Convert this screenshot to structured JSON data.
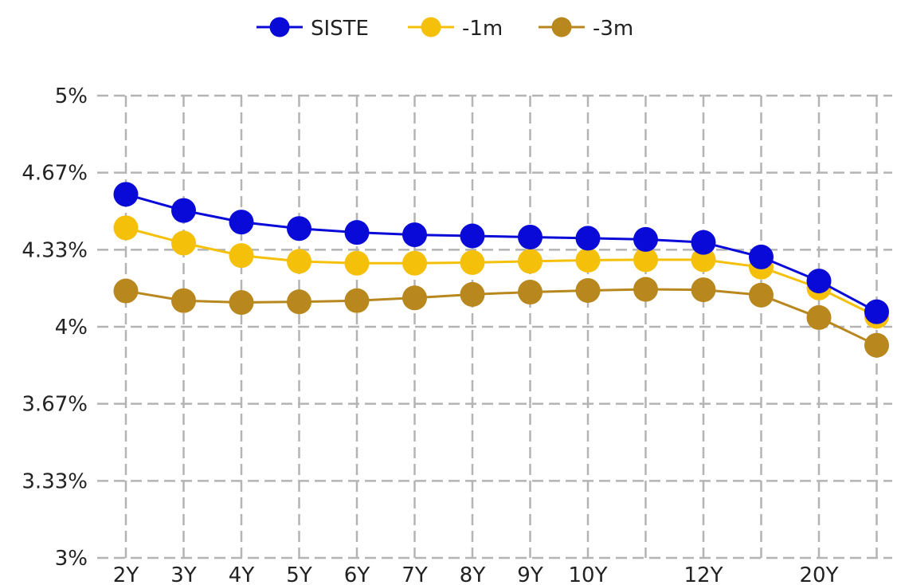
{
  "chart_data": {
    "type": "line",
    "title": "",
    "xlabel": "",
    "ylabel": "",
    "categories": [
      "2Y",
      "3Y",
      "4Y",
      "5Y",
      "6Y",
      "7Y",
      "8Y",
      "9Y",
      "10Y",
      "",
      "12Y",
      "",
      "20Y",
      ""
    ],
    "y_ticks": [
      "3%",
      "3.33%",
      "3.67%",
      "4%",
      "4.33%",
      "4.67%",
      "5%"
    ],
    "ylim": [
      3,
      5
    ],
    "grid": true,
    "grid_style": "dashed",
    "legend_position": "top-center",
    "series": [
      {
        "name": "SISTE",
        "color": "#0a0ad8",
        "values": [
          4.573,
          4.503,
          4.453,
          4.425,
          4.408,
          4.398,
          4.393,
          4.388,
          4.383,
          4.378,
          4.365,
          4.302,
          4.198,
          4.065
        ]
      },
      {
        "name": "-1m",
        "color": "#f5c00a",
        "values": [
          4.428,
          4.362,
          4.308,
          4.283,
          4.275,
          4.275,
          4.278,
          4.283,
          4.288,
          4.29,
          4.29,
          4.258,
          4.168,
          4.045
        ]
      },
      {
        "name": "-3m",
        "color": "#b8871e",
        "values": [
          4.155,
          4.113,
          4.105,
          4.108,
          4.113,
          4.125,
          4.14,
          4.15,
          4.157,
          4.162,
          4.16,
          4.137,
          4.04,
          3.92
        ]
      }
    ]
  }
}
